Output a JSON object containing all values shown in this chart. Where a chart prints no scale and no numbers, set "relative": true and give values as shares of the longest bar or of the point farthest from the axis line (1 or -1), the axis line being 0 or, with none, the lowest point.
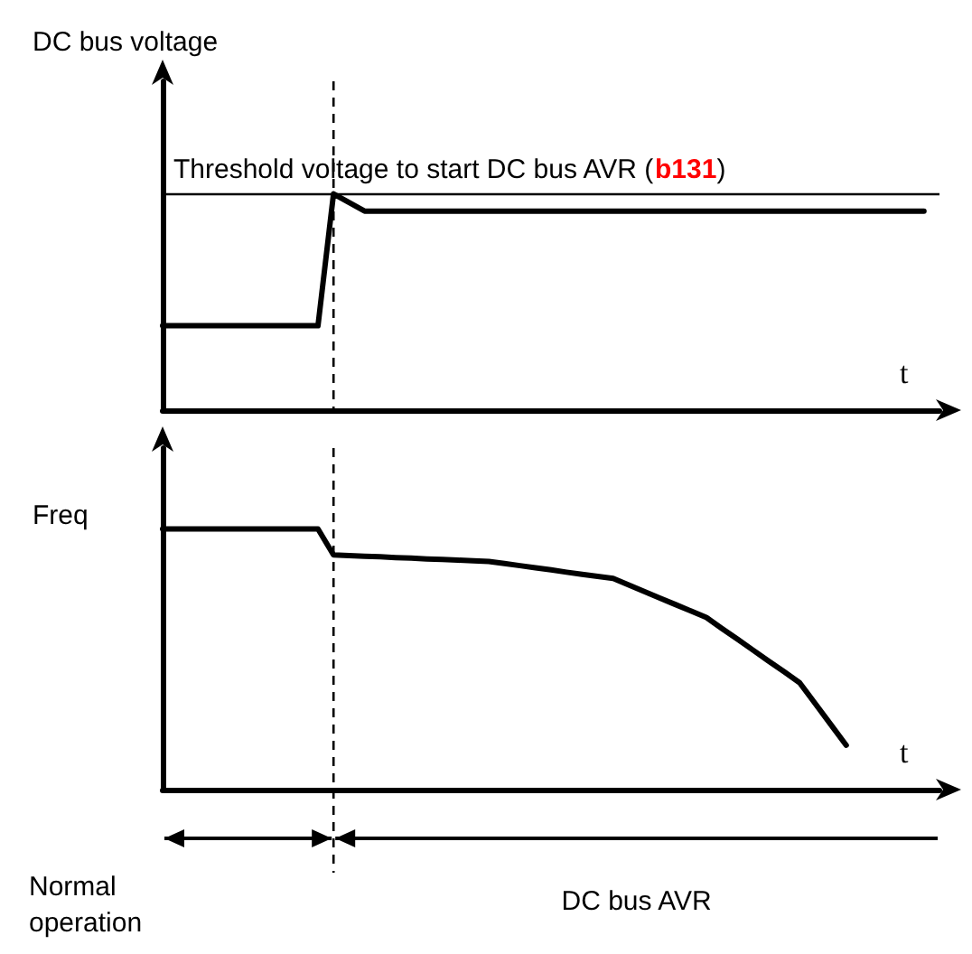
{
  "chart_data": [
    {
      "type": "line",
      "ylabel": "DC bus voltage",
      "xlabel": "t",
      "relative": true,
      "categories": [
        null,
        null,
        null,
        null,
        null,
        null,
        null,
        null,
        null,
        null,
        null,
        null,
        null,
        null,
        null,
        null,
        null,
        null,
        null,
        null,
        null,
        null,
        null,
        null,
        null,
        null,
        null,
        null,
        null,
        null,
        null,
        null,
        null,
        null,
        null,
        null,
        null,
        null,
        null,
        null,
        null,
        null,
        null,
        null,
        null,
        null,
        null,
        null,
        null,
        null,
        null
      ],
      "series": [
        {
          "color": "#000000",
          "values": [
            0.39,
            0.39,
            0.39,
            0.39,
            0.39,
            0.39,
            0.39,
            0.39,
            0.39,
            0.39,
            0.39,
            1,
            0.96,
            0.92,
            0.92,
            0.92,
            0.92,
            0.92,
            0.92,
            0.92,
            0.92,
            0.92,
            0.92,
            0.92,
            0.92,
            0.92,
            0.92,
            0.92,
            0.92,
            0.92,
            0.92,
            0.92,
            0.92,
            0.92,
            0.92,
            0.92,
            0.92,
            0.92,
            0.92,
            0.92,
            0.92,
            0.92,
            0.92,
            0.92,
            0.92,
            0.92,
            0.92,
            0.92,
            0.92,
            0.92,
            null
          ]
        }
      ],
      "ref_lines": [
        {
          "axis": "y",
          "value": 1,
          "label": "Threshold voltage to start DC bus AVR (b131)",
          "color": "#000000",
          "line_style": "solid"
        }
      ],
      "grid": false,
      "line_style": "solid"
    },
    {
      "type": "line",
      "ylabel": "Freq",
      "xlabel": "t",
      "relative": true,
      "categories": [
        null,
        null,
        null,
        null,
        null,
        null,
        null,
        null,
        null,
        null,
        null,
        null,
        null,
        null,
        null,
        null,
        null,
        null,
        null,
        null,
        null,
        null,
        null,
        null,
        null,
        null,
        null,
        null,
        null,
        null,
        null,
        null,
        null,
        null,
        null,
        null,
        null,
        null,
        null,
        null,
        null,
        null,
        null,
        null,
        null,
        null,
        null,
        null,
        null,
        null,
        null
      ],
      "series": [
        {
          "color": "#000000",
          "values": [
            1,
            1,
            1,
            1,
            1,
            1,
            1,
            1,
            1,
            1,
            1,
            0.9,
            0.898,
            0.895,
            0.893,
            0.89,
            0.888,
            0.885,
            0.883,
            0.88,
            0.878,
            0.875,
            0.867,
            0.859,
            0.851,
            0.843,
            0.834,
            0.826,
            0.818,
            0.81,
            0.785,
            0.76,
            0.735,
            0.71,
            0.685,
            0.66,
            0.618,
            0.577,
            0.535,
            0.493,
            0.452,
            0.41,
            0.33,
            0.25,
            0.17,
            null,
            null,
            null,
            null,
            null,
            null
          ]
        }
      ],
      "annotations": [
        "Normal operation",
        "DC bus AVR"
      ],
      "grid": false,
      "line_style": "solid"
    }
  ]
}
